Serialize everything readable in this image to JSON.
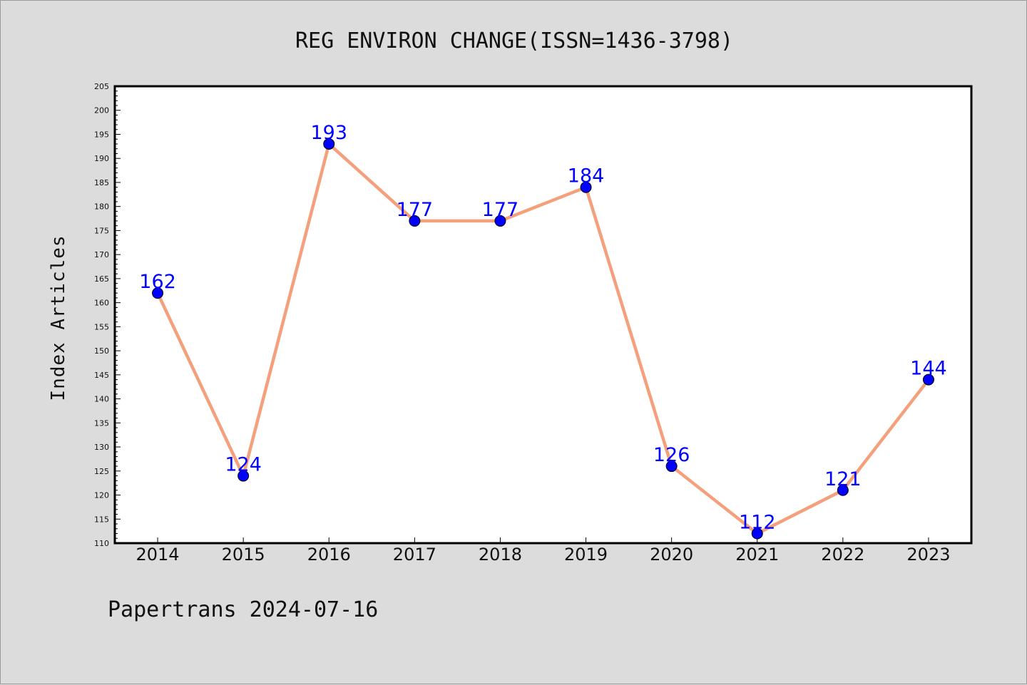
{
  "chart_data": {
    "type": "line",
    "title": "REG ENVIRON CHANGE(ISSN=1436-3798)",
    "xlabel": "",
    "ylabel": "Index Articles",
    "categories": [
      "2014",
      "2015",
      "2016",
      "2017",
      "2018",
      "2019",
      "2020",
      "2021",
      "2022",
      "2023"
    ],
    "series": [
      {
        "values": [
          162,
          124,
          193,
          177,
          177,
          184,
          126,
          112,
          121,
          144
        ]
      }
    ],
    "ylim": [
      110,
      205
    ],
    "ytick_step": 5,
    "grid": false,
    "line_color": "#f4a07c",
    "marker_color": "#0000ff",
    "label_color": "#0000ff"
  },
  "footer": "Papertrans 2024-07-16"
}
